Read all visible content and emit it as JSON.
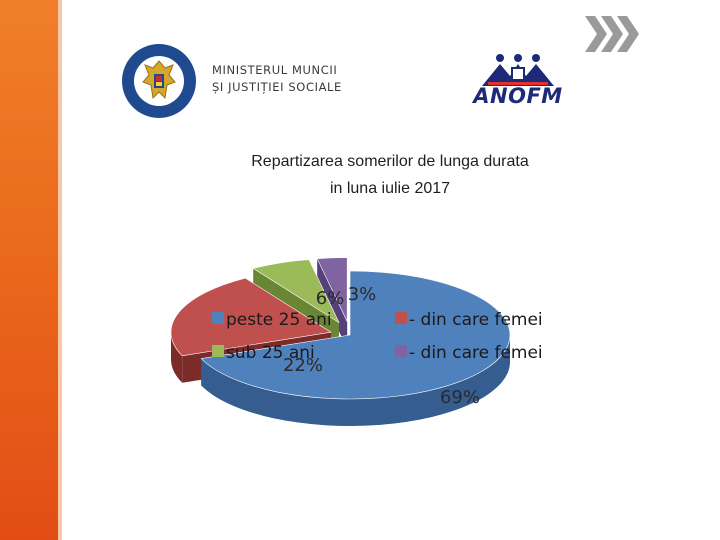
{
  "logos": {
    "ministry": {
      "emblem_text": "GUVERNUL ROMÂNIEI",
      "line1": "MINISTERUL MUNCII",
      "line2": "ȘI JUSTIȚIEI SOCIALE"
    },
    "anofm": {
      "name": "ANOFM"
    }
  },
  "chart_data": {
    "type": "pie",
    "title_lines": [
      "Repartizarea somerilor de lunga durata",
      "in luna iulie 2017"
    ],
    "series": [
      {
        "name": "peste 25 ani",
        "value": 69,
        "label": "69%",
        "color": "#4f81bd",
        "side": "#355d8f"
      },
      {
        "name": "- din care femei",
        "value": 22,
        "label": "22%",
        "color": "#c0504d",
        "side": "#7a2b2a"
      },
      {
        "name": "sub 25 ani",
        "value": 6,
        "label": "6%",
        "color": "#9bbb59",
        "side": "#6a8634"
      },
      {
        "name": "- din care femei",
        "value": 3,
        "label": "3%",
        "color": "#8064a2",
        "side": "#54407a"
      }
    ],
    "legend_order": [
      0,
      1,
      2,
      3
    ],
    "legend_placement": "top",
    "style": "exploded-3d"
  }
}
